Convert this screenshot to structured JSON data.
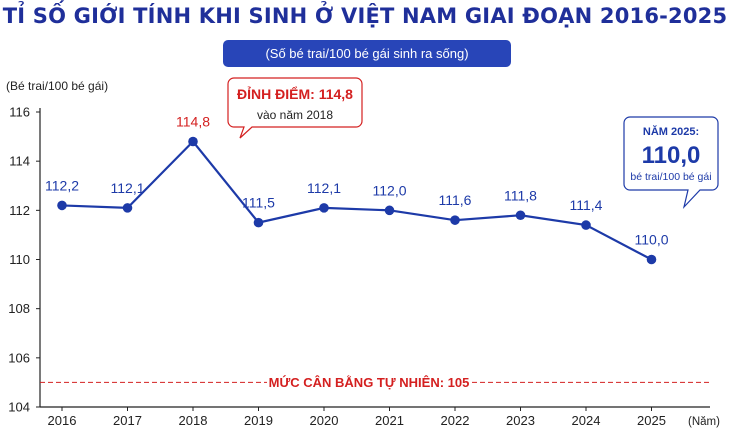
{
  "title": "TỈ SỐ GIỚI TÍNH KHI SINH Ở VIỆT NAM GIAI ĐOẠN 2016-2025",
  "subtitle": "(Số bé trai/100 bé gái sinh ra sống)",
  "colors": {
    "title": "#1f2f9a",
    "line": "#1d3aa8",
    "point": "#1d3aa8",
    "label": "#1d3aa8",
    "peak": "#d42020",
    "pill": "#2845b8",
    "reference": "#d42020",
    "axis": "#222222"
  },
  "chart_data": {
    "type": "line",
    "title": "TỈ SỐ GIỚI TÍNH KHI SINH Ở VIỆT NAM GIAI ĐOẠN 2016-2025",
    "subtitle": "(Số bé trai/100 bé gái sinh ra sống)",
    "ylabel": "(Bé trai/100 bé gái)",
    "xlabel": "(Năm)",
    "ylim": [
      104,
      116
    ],
    "yticks": [
      104,
      106,
      108,
      110,
      112,
      114,
      116
    ],
    "categories": [
      "2016",
      "2017",
      "2018",
      "2019",
      "2020",
      "2021",
      "2022",
      "2023",
      "2024",
      "2025"
    ],
    "values": [
      112.2,
      112.1,
      114.8,
      111.5,
      112.1,
      112.0,
      111.6,
      111.8,
      111.4,
      110.0
    ],
    "data_labels": [
      "112,2",
      "112,1",
      "114,8",
      "111,5",
      "112,1",
      "112,0",
      "111,6",
      "111,8",
      "111,4",
      "110,0"
    ],
    "grid": false,
    "reference_line": {
      "value": 105,
      "label": "MỨC CÂN BẰNG TỰ NHIÊN: 105"
    },
    "annotations": {
      "peak": {
        "title": "ĐỈNH ĐIỂM: 114,8",
        "text": "vào năm 2018"
      },
      "latest": {
        "line1": "NĂM 2025:",
        "value": "110,0",
        "line3": "bé trai/100 bé gái"
      }
    }
  }
}
